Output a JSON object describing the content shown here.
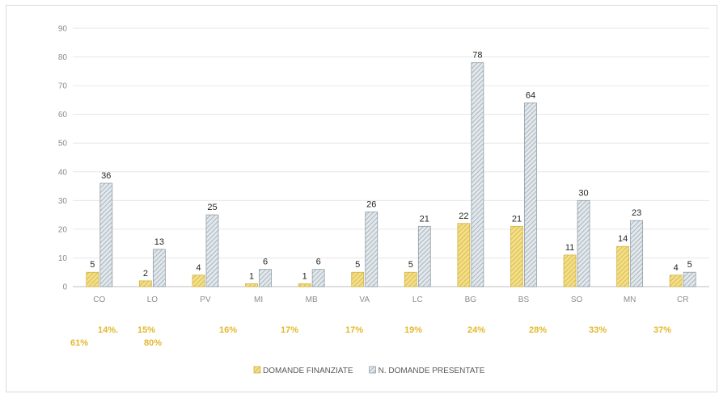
{
  "chart_data": {
    "type": "bar",
    "categories": [
      "CO",
      "LO",
      "PV",
      "MI",
      "MB",
      "VA",
      "LC",
      "BG",
      "BS",
      "SO",
      "MN",
      "CR"
    ],
    "series": [
      {
        "name": "DOMANDE FINANZIATE",
        "values": [
          5,
          2,
          4,
          1,
          1,
          5,
          5,
          22,
          21,
          11,
          14,
          4
        ],
        "color": "#e8cd5a"
      },
      {
        "name": "N. DOMANDE PRESENTATE",
        "values": [
          36,
          13,
          25,
          6,
          6,
          26,
          21,
          78,
          64,
          30,
          23,
          5
        ],
        "color": "#b8c4cc"
      }
    ],
    "ylim": [
      0,
      90
    ],
    "yticks": [
      0,
      10,
      20,
      30,
      40,
      50,
      60,
      70,
      80,
      90
    ],
    "grid": true,
    "legend_position": "bottom-center",
    "percent_annotations": [
      "14%.",
      "61%",
      "15%",
      "80%",
      "16%",
      "17%",
      "17%",
      "19%",
      "24%",
      "28%",
      "33%",
      "37%"
    ],
    "title": "",
    "xlabel": "",
    "ylabel": ""
  }
}
